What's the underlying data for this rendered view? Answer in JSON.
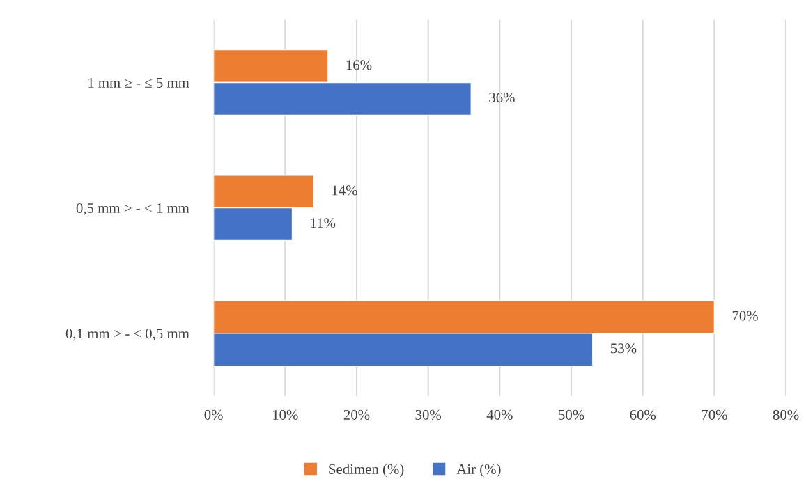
{
  "chart_data": {
    "type": "bar",
    "orientation": "horizontal",
    "categories": [
      "1 mm ≥ - ≤ 5 mm",
      "0,5 mm > - < 1 mm",
      "0,1 mm ≥ - ≤ 0,5 mm"
    ],
    "series": [
      {
        "name": "Sedimen (%)",
        "color": "#ed7d31",
        "values": [
          16,
          14,
          70
        ],
        "value_labels": [
          "16%",
          "14%",
          "70%"
        ]
      },
      {
        "name": "Air (%)",
        "color": "#4472c4",
        "values": [
          36,
          11,
          53
        ],
        "value_labels": [
          "36%",
          "11%",
          "53%"
        ]
      }
    ],
    "xlim": [
      0,
      80
    ],
    "xticks": [
      {
        "value": 0,
        "label": "0%"
      },
      {
        "value": 10,
        "label": "10%"
      },
      {
        "value": 20,
        "label": "20%"
      },
      {
        "value": 30,
        "label": "30%"
      },
      {
        "value": 40,
        "label": "40%"
      },
      {
        "value": 50,
        "label": "50%"
      },
      {
        "value": 60,
        "label": "60%"
      },
      {
        "value": 70,
        "label": "70%"
      },
      {
        "value": 80,
        "label": "80%"
      }
    ],
    "grid": "x",
    "legend": "bottom"
  }
}
